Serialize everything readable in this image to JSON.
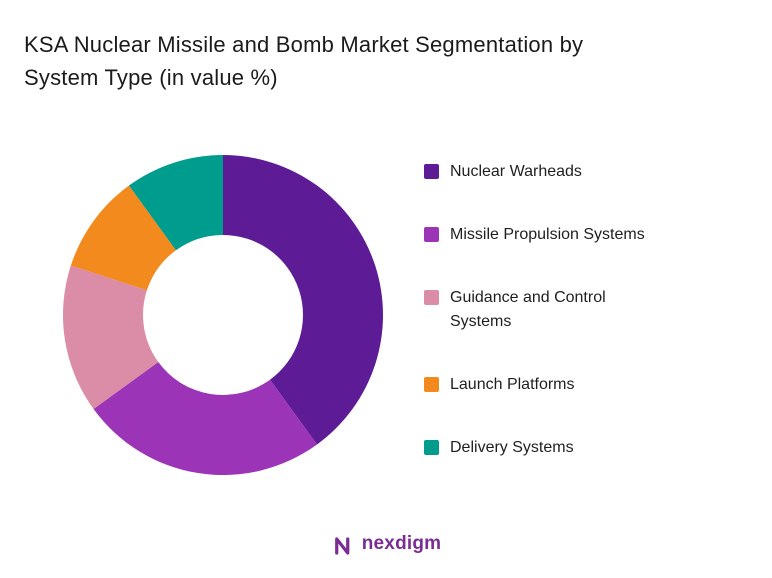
{
  "title": "KSA Nuclear Missile and Bomb Market Segmentation by System Type (in value %)",
  "chart_data": {
    "type": "pie",
    "subtype": "donut",
    "title": "KSA Nuclear Missile and Bomb Market Segmentation by System Type (in value %)",
    "categories": [
      "Nuclear Warheads",
      "Missile Propulsion Systems",
      "Guidance and Control Systems",
      "Launch Platforms",
      "Delivery Systems"
    ],
    "values": [
      40,
      25,
      15,
      10,
      10
    ],
    "unit": "value %",
    "colors": [
      "#5E1B96",
      "#9C34B8",
      "#DB8CA7",
      "#F28A1E",
      "#009C8E"
    ],
    "legend_position": "right",
    "start_angle_deg": 0,
    "direction": "clockwise",
    "donut_hole_ratio": 0.5,
    "background": "#ffffff"
  },
  "logo": {
    "text": "nexdigm",
    "color": "#7B2C93",
    "icon": "nexdigm-n-wave-icon"
  }
}
